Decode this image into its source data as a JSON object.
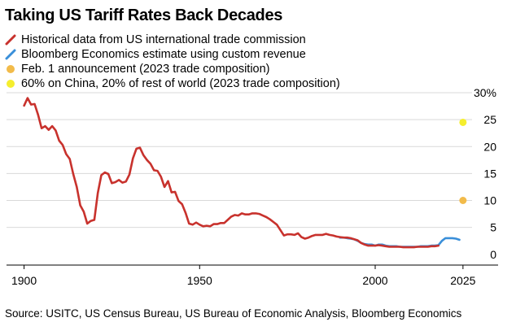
{
  "title": "Taking US Tariff Rates Back Decades",
  "source": "Source: USITC, US Census Bureau, US Bureau of Economic Analysis, Bloomberg Economics",
  "legend": [
    {
      "label": "Historical data from US international trade commission",
      "color": "#c8322d",
      "icon": "diagonal-line-icon"
    },
    {
      "label": "Bloomberg Economics estimate using custom revenue",
      "color": "#3a8fd9",
      "icon": "diagonal-line-icon"
    },
    {
      "label": "Feb. 1 announcement (2023 trade composition)",
      "color": "#f2bb4a",
      "icon": "dot-icon"
    },
    {
      "label": "60% on China, 20% of rest of world (2023 trade composition)",
      "color": "#f5ee2e",
      "icon": "dot-icon"
    }
  ],
  "chart_data": {
    "type": "line",
    "title": "Taking US Tariff Rates Back Decades",
    "xlim": [
      1895,
      2035
    ],
    "ylim": [
      -2,
      30
    ],
    "x_ticks": [
      1900,
      1950,
      2000,
      2025
    ],
    "y_ticks": [
      0,
      5,
      10,
      15,
      20,
      25,
      30
    ],
    "y_tick_labels": [
      "0",
      "5",
      "10",
      "15",
      "20",
      "25",
      "30%"
    ],
    "grid": true,
    "legend_position": "top-left",
    "series": [
      {
        "name": "Historical data from US international trade commission",
        "color": "#c8322d",
        "x": [
          1900,
          1901,
          1902,
          1903,
          1904,
          1905,
          1906,
          1907,
          1908,
          1909,
          1910,
          1911,
          1912,
          1913,
          1914,
          1915,
          1916,
          1917,
          1918,
          1919,
          1920,
          1921,
          1922,
          1923,
          1924,
          1925,
          1926,
          1927,
          1928,
          1929,
          1930,
          1931,
          1932,
          1933,
          1934,
          1935,
          1936,
          1937,
          1938,
          1939,
          1940,
          1941,
          1942,
          1943,
          1944,
          1945,
          1946,
          1947,
          1948,
          1949,
          1950,
          1951,
          1952,
          1953,
          1954,
          1955,
          1956,
          1957,
          1958,
          1959,
          1960,
          1961,
          1962,
          1963,
          1964,
          1965,
          1966,
          1967,
          1968,
          1969,
          1970,
          1971,
          1972,
          1973,
          1974,
          1975,
          1976,
          1977,
          1978,
          1979,
          1980,
          1981,
          1982,
          1983,
          1984,
          1985,
          1986,
          1987,
          1988,
          1989,
          1990,
          1991,
          1992,
          1993,
          1994,
          1995,
          1996,
          1997,
          1998,
          1999,
          2000,
          2001,
          2002,
          2003,
          2004,
          2005,
          2006,
          2007,
          2008,
          2009,
          2010,
          2011,
          2012,
          2013,
          2014,
          2015,
          2016,
          2017,
          2018
        ],
        "values": [
          27.6,
          29.0,
          27.8,
          27.9,
          25.9,
          23.4,
          23.8,
          23.1,
          23.8,
          23.0,
          21.1,
          20.3,
          18.6,
          17.7,
          14.9,
          12.5,
          9.1,
          7.9,
          5.7,
          6.2,
          6.4,
          11.4,
          14.7,
          15.2,
          14.9,
          13.2,
          13.4,
          13.8,
          13.3,
          13.5,
          14.8,
          17.8,
          19.6,
          19.8,
          18.4,
          17.5,
          16.8,
          15.6,
          15.5,
          14.4,
          12.5,
          13.6,
          11.5,
          11.6,
          9.9,
          9.3,
          7.7,
          5.7,
          5.5,
          5.9,
          5.5,
          5.2,
          5.3,
          5.2,
          5.6,
          5.6,
          5.8,
          5.8,
          6.4,
          7.0,
          7.3,
          7.2,
          7.6,
          7.4,
          7.4,
          7.6,
          7.6,
          7.5,
          7.2,
          6.9,
          6.5,
          6.0,
          5.5,
          4.5,
          3.5,
          3.7,
          3.7,
          3.6,
          3.9,
          3.2,
          2.9,
          3.1,
          3.4,
          3.6,
          3.6,
          3.6,
          3.8,
          3.6,
          3.5,
          3.3,
          3.2,
          3.1,
          3.1,
          3.0,
          2.8,
          2.6,
          2.1,
          1.8,
          1.6,
          1.6,
          1.6,
          1.7,
          1.6,
          1.5,
          1.4,
          1.4,
          1.4,
          1.4,
          1.3,
          1.3,
          1.3,
          1.3,
          1.4,
          1.4,
          1.4,
          1.4,
          1.5,
          1.5,
          1.6
        ]
      },
      {
        "name": "Bloomberg Economics estimate using custom revenue",
        "color": "#3a8fd9",
        "x": [
          1990,
          1991,
          1992,
          1993,
          1994,
          1995,
          1996,
          1997,
          1998,
          1999,
          2000,
          2001,
          2002,
          2003,
          2004,
          2005,
          2006,
          2007,
          2008,
          2009,
          2010,
          2011,
          2012,
          2013,
          2014,
          2015,
          2016,
          2017,
          2018,
          2019,
          2020,
          2021,
          2022,
          2023,
          2024
        ],
        "values": [
          3.1,
          3.1,
          3.0,
          2.9,
          2.8,
          2.5,
          2.1,
          1.9,
          1.8,
          1.8,
          1.6,
          1.8,
          1.8,
          1.6,
          1.5,
          1.5,
          1.5,
          1.4,
          1.4,
          1.4,
          1.4,
          1.4,
          1.4,
          1.5,
          1.5,
          1.5,
          1.6,
          1.6,
          1.7,
          2.5,
          3.0,
          3.0,
          3.0,
          2.9,
          2.7
        ]
      }
    ],
    "points": [
      {
        "name": "Feb. 1 announcement (2023 trade composition)",
        "x": 2025,
        "y": 10.0,
        "color": "#f2bb4a"
      },
      {
        "name": "60% on China, 20% of rest of world (2023 trade composition)",
        "x": 2025,
        "y": 24.5,
        "color": "#f5ee2e"
      }
    ]
  }
}
